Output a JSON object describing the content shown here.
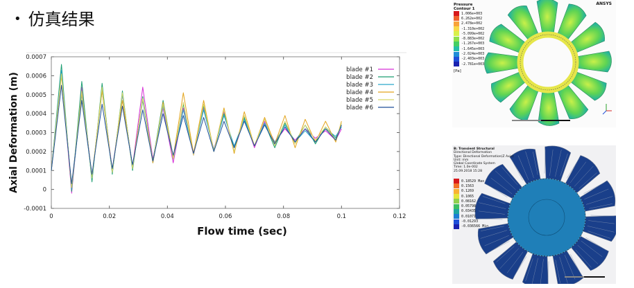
{
  "slide": {
    "bullet": "•",
    "title": "仿真结果"
  },
  "chart_data": {
    "type": "line",
    "xlabel": "Flow time (sec)",
    "ylabel": "Axial Deformation (m)",
    "xlim": [
      0,
      0.12
    ],
    "ylim": [
      -0.0001,
      0.0007
    ],
    "x_ticks": [
      "0",
      "0.02",
      "0.04",
      "0.06",
      "0.08",
      "0.1",
      "0.12"
    ],
    "y_ticks": [
      "-0.0001",
      "0",
      "0.0001",
      "0.0002",
      "0.0003",
      "0.0004",
      "0.0005",
      "0.0006",
      "0.0007"
    ],
    "grid": false,
    "legend_position": "top-right",
    "x": [
      0,
      0.0035,
      0.007,
      0.0105,
      0.014,
      0.0175,
      0.021,
      0.0245,
      0.028,
      0.0315,
      0.035,
      0.0385,
      0.042,
      0.0455,
      0.049,
      0.0525,
      0.056,
      0.0595,
      0.063,
      0.0665,
      0.07,
      0.0735,
      0.077,
      0.0805,
      0.084,
      0.0875,
      0.091,
      0.0945,
      0.098,
      0.1
    ],
    "series": [
      {
        "name": "blade #1",
        "color": "#d62fd6",
        "values": [
          0.0001,
          0.00062,
          -2e-05,
          0.00054,
          6e-05,
          0.00054,
          0.0001,
          0.0005,
          0.00012,
          0.00054,
          0.00016,
          0.00043,
          0.00014,
          0.00043,
          0.00018,
          0.00043,
          0.00021,
          0.00041,
          0.0002,
          0.00038,
          0.00022,
          0.00036,
          0.00025,
          0.00032,
          0.00026,
          0.00032,
          0.00027,
          0.00031,
          0.00026,
          0.00032
        ]
      },
      {
        "name": "blade #2",
        "color": "#1a9d70",
        "values": [
          0.0001,
          0.00066,
          -1e-05,
          0.00057,
          4e-05,
          0.00056,
          8e-05,
          0.00052,
          0.0001,
          0.00049,
          0.00015,
          0.00047,
          0.00017,
          0.00045,
          0.00019,
          0.00044,
          0.0002,
          0.0004,
          0.00022,
          0.00038,
          0.00023,
          0.00035,
          0.00022,
          0.00035,
          0.00025,
          0.00034,
          0.00024,
          0.00033,
          0.00027,
          0.00034
        ]
      },
      {
        "name": "blade #3",
        "color": "#2aa6c9",
        "values": [
          0.0001,
          0.00063,
          0.0,
          0.0005,
          6e-05,
          0.00052,
          9e-05,
          0.0005,
          0.00012,
          0.00047,
          0.00014,
          0.00044,
          0.00016,
          0.00042,
          0.00019,
          0.00042,
          0.00021,
          0.00039,
          0.00023,
          0.00037,
          0.00023,
          0.00035,
          0.00025,
          0.00034,
          0.00025,
          0.00031,
          0.00025,
          0.00032,
          0.00028,
          0.00033
        ]
      },
      {
        "name": "blade #4",
        "color": "#e3a41c",
        "values": [
          0.0001,
          0.0006,
          1e-05,
          0.00051,
          7e-05,
          0.00052,
          0.0001,
          0.00047,
          0.00012,
          0.00048,
          0.00014,
          0.00046,
          0.00017,
          0.00051,
          0.00019,
          0.00047,
          0.0002,
          0.00043,
          0.00019,
          0.00041,
          0.00023,
          0.00038,
          0.00024,
          0.00039,
          0.00022,
          0.00037,
          0.00025,
          0.00036,
          0.00025,
          0.00036
        ]
      },
      {
        "name": "blade #5",
        "color": "#d8d86a",
        "values": [
          0.0001,
          0.00061,
          1e-05,
          0.00052,
          6e-05,
          0.00054,
          9e-05,
          0.00051,
          0.00011,
          0.00048,
          0.00015,
          0.00045,
          0.00016,
          0.00046,
          0.00018,
          0.00045,
          0.0002,
          0.00042,
          0.0002,
          0.00039,
          0.00023,
          0.00037,
          0.00023,
          0.00036,
          0.00024,
          0.00034,
          0.00026,
          0.00033,
          0.00026,
          0.00035
        ]
      },
      {
        "name": "blade #6",
        "color": "#1d4e97",
        "values": [
          0.0001,
          0.00055,
          3e-05,
          0.00047,
          8e-05,
          0.00045,
          0.00011,
          0.00044,
          0.00013,
          0.00042,
          0.00015,
          0.0004,
          0.00018,
          0.00039,
          0.00019,
          0.00038,
          0.0002,
          0.00036,
          0.00022,
          0.00036,
          0.00023,
          0.00034,
          0.00024,
          0.00033,
          0.00025,
          0.00032,
          0.00025,
          0.00032,
          0.00026,
          0.00034
        ]
      }
    ]
  },
  "pressure_panel": {
    "header_lines": [
      "Pressure",
      "Contour 1"
    ],
    "unit": "[Pa]",
    "brand": "ANSYS",
    "legend_values": [
      "1.006e+003",
      "6.262e+002",
      "2.478e+002",
      "-1.310e+002",
      "-5.099e+002",
      "-8.883e+002",
      "-1.267e+003",
      "-1.645e+003",
      "-2.024e+003",
      "-2.403e+003",
      "-2.781e+003"
    ],
    "legend_colors": [
      "#d7191c",
      "#f0612c",
      "#f8a33a",
      "#f8d94a",
      "#d8f04a",
      "#8ee04c",
      "#45cf63",
      "#25bfa8",
      "#1f8dd8",
      "#1f4fd8",
      "#1a22b0"
    ]
  },
  "deformation_panel": {
    "header_lines": [
      "B: Transient Structural",
      "Directional Deformation",
      "Type: Directional Deformation(Z Axis)",
      "Unit: mm",
      "Global Coordinate System",
      "Time: 1.0e-002",
      "25.09.2018 15:28"
    ],
    "legend_values": [
      "0.18529 Max",
      "0.1563",
      "0.1269",
      "0.1065",
      "0.08162",
      "0.05798",
      "0.03435",
      "0.01071",
      "-0.01293",
      "-0.036566 Min"
    ],
    "legend_colors": [
      "#d7191c",
      "#f27128",
      "#f9b233",
      "#e5e53a",
      "#8fd14f",
      "#3cbf62",
      "#1fa7a0",
      "#1e7fd4",
      "#1f4fd8",
      "#1a22b0"
    ]
  }
}
